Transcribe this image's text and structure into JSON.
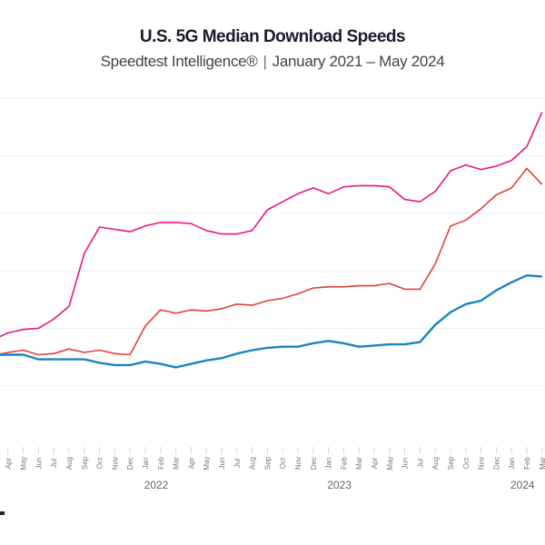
{
  "title": "U.S. 5G Median Download Speeds",
  "subtitle": {
    "source": "Speedtest Intelligence®",
    "separator": "|",
    "period": "January 2021 – May 2024"
  },
  "chart_data": {
    "type": "line",
    "title": "U.S. 5G Median Download Speeds",
    "subtitle": "Speedtest Intelligence® | January 2021 – May 2024",
    "xlabel": "",
    "ylabel": "",
    "x": [
      "2021-03",
      "2021-04",
      "2021-05",
      "2021-06",
      "2021-07",
      "2021-08",
      "2021-09",
      "2021-10",
      "2021-11",
      "2021-12",
      "2022-01",
      "2022-02",
      "2022-03",
      "2022-04",
      "2022-05",
      "2022-06",
      "2022-07",
      "2022-08",
      "2022-09",
      "2022-10",
      "2022-11",
      "2022-12",
      "2023-01",
      "2023-02",
      "2023-03",
      "2023-04",
      "2023-05",
      "2023-06",
      "2023-07",
      "2023-08",
      "2023-09",
      "2023-10",
      "2023-11",
      "2023-12",
      "2024-01",
      "2024-02",
      "2024-03"
    ],
    "x_tick_labels": [
      "",
      "Apr",
      "May",
      "Jun",
      "Jul",
      "Aug",
      "Sep",
      "Oct",
      "Nov",
      "Dec",
      "Jan",
      "Feb",
      "Mar",
      "Apr",
      "May",
      "Jun",
      "Jul",
      "Aug",
      "Sep",
      "Oct",
      "Nov",
      "Dec",
      "Jan",
      "Feb",
      "Mar",
      "Apr",
      "May",
      "Jun",
      "Jul",
      "Aug",
      "Sep",
      "Oct",
      "Nov",
      "Dec",
      "Jan",
      "Feb",
      "Mar"
    ],
    "year_labels": [
      {
        "label": "2022",
        "at": "2022-01"
      },
      {
        "label": "2023",
        "at": "2023-01"
      },
      {
        "label": "2024",
        "at": "2024-01"
      }
    ],
    "ylim": [
      0,
      300
    ],
    "y_gridlines": [
      50,
      100,
      150,
      200,
      250,
      300
    ],
    "y_tick_labels_visible": false,
    "grid": true,
    "series": [
      {
        "color": "#e8197d",
        "values": [
          90,
          96,
          99,
          100,
          108,
          119,
          165,
          188,
          186,
          184,
          189,
          192,
          192,
          191,
          185,
          182,
          182,
          185,
          203,
          210,
          217,
          222,
          217,
          223,
          224,
          224,
          223,
          212,
          210,
          219,
          237,
          242,
          238,
          241,
          246,
          258,
          288
        ]
      },
      {
        "color": "#e2403b",
        "values": [
          76,
          79,
          81,
          77,
          78,
          82,
          79,
          81,
          78,
          77,
          102,
          116,
          113,
          116,
          115,
          117,
          121,
          120,
          124,
          126,
          130,
          135,
          136,
          136,
          137,
          137,
          139,
          134,
          134,
          156,
          189,
          194,
          204,
          216,
          222,
          239,
          225
        ]
      },
      {
        "color": "#1a84c2",
        "values": [
          77,
          77,
          77,
          73,
          73,
          73,
          73,
          70,
          68,
          68,
          71,
          69,
          66,
          69,
          72,
          74,
          78,
          81,
          83,
          84,
          84,
          87,
          89,
          87,
          84,
          85,
          86,
          86,
          88,
          103,
          114,
          121,
          124,
          133,
          140,
          146,
          145
        ]
      }
    ]
  }
}
